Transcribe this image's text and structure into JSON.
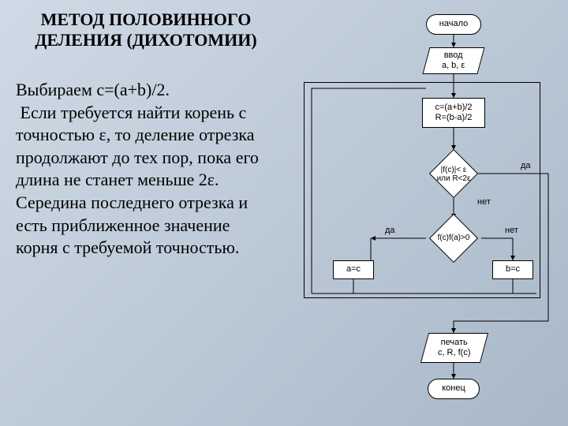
{
  "title": "МЕТОД ПОЛОВИННОГО ДЕЛЕНИЯ (ДИХОТОМИИ)",
  "body": "Выбираем c=(a+b)/2.\n Если требуется найти корень с точностью ε, то деление отрезка продолжают до тех пор, пока его длина не станет меньше 2ε.\nСередина последнего отрезка и есть приближенное значение корня с требуемой точностью.",
  "flow": {
    "start": "начало",
    "input": "ввод\na, b, ε",
    "calc": "c=(a+b)/2\nR=(b-a)/2",
    "cond1": "|f(c)|< ε\nили R<2ε",
    "cond2": "f(c)f(a)>0",
    "assignA": "a=c",
    "assignB": "b=c",
    "output": "печать\nc, R, f(c)",
    "end": "конец",
    "yes": "да",
    "no": "нет"
  },
  "style": {
    "node_bg": "#ffffff",
    "node_border": "#000000",
    "font_body": 22,
    "font_node": 11,
    "font_edge": 11,
    "title_font": 22
  }
}
